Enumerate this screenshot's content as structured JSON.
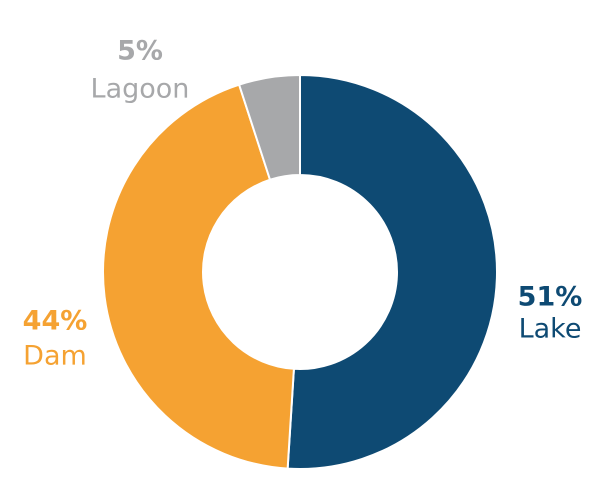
{
  "chart_data": {
    "type": "donut",
    "categories": [
      "Lake",
      "Dam",
      "Lagoon"
    ],
    "values": [
      51,
      44,
      5
    ],
    "value_labels": [
      "51%",
      "44%",
      "5%"
    ],
    "colors": [
      "#0e4a73",
      "#f5a232",
      "#a7a8aa"
    ]
  }
}
